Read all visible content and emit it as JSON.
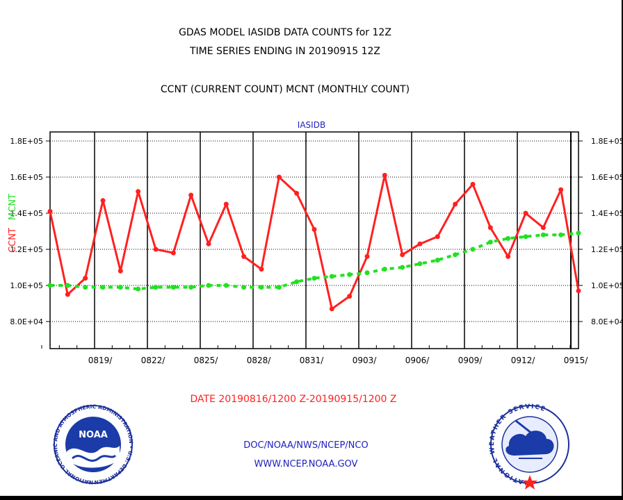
{
  "header": {
    "title_line1": "GDAS MODEL IASIDB DATA COUNTS for 12Z",
    "title_line2": "TIME SERIES ENDING IN 20190915 12Z",
    "subtitle": "CCNT (CURRENT COUNT) MCNT (MONTHLY COUNT)"
  },
  "footer": {
    "date_range": "DATE 20190816/1200 Z-20190915/1200 Z",
    "org_path": "DOC/NOAA/NWS/NCEP/NCO",
    "url": "WWW.NCEP.NOAA.GOV",
    "noaa_label": "NOAA",
    "noaa_ring_text": "NATIONAL OCEANIC AND ATMOSPHERIC ADMINISTRATION • U.S. DEPARTMENT OF COMMERCE •",
    "nws_ring_text": "NATIONAL WEATHER SERVICE"
  },
  "chart_data": {
    "type": "line",
    "title": "IASIDB",
    "ylabel_left": "CCNT",
    "ylabel_right": "MCNT",
    "left_ylim": [
      0.65,
      1.85
    ],
    "right_ylim": [
      0.65,
      1.85
    ],
    "left_ticks": [
      {
        "value": 0.8,
        "label": "8.0E+04"
      },
      {
        "value": 1.0,
        "label": "1.0E+05"
      },
      {
        "value": 1.2,
        "label": "1.2E+05"
      },
      {
        "value": 1.4,
        "label": "1.4E+05"
      },
      {
        "value": 1.6,
        "label": "1.6E+05"
      },
      {
        "value": 1.8,
        "label": "1.8E+05"
      }
    ],
    "right_ticks": [
      {
        "value": 0.8,
        "label": "8.0E+04"
      },
      {
        "value": 1.0,
        "label": "1.0E+05"
      },
      {
        "value": 1.2,
        "label": "1.2E+05"
      },
      {
        "value": 1.4,
        "label": "1.4E+05"
      },
      {
        "value": 1.6,
        "label": "1.6E+05"
      },
      {
        "value": 1.8,
        "label": "1.8E+05"
      }
    ],
    "y_multiplier_note": "values in units of 1E+05",
    "x_start": 0,
    "x_end": 30,
    "x_ticks": [
      {
        "value": 3,
        "label": "0819/"
      },
      {
        "value": 6,
        "label": "0822/"
      },
      {
        "value": 9,
        "label": "0825/"
      },
      {
        "value": 12,
        "label": "0828/"
      },
      {
        "value": 15,
        "label": "0831/"
      },
      {
        "value": 18,
        "label": "0903/"
      },
      {
        "value": 21,
        "label": "0906/"
      },
      {
        "value": 24,
        "label": "0909/"
      },
      {
        "value": 27,
        "label": "0912/"
      },
      {
        "value": 30,
        "label": "0915/"
      }
    ],
    "grid": true,
    "series": [
      {
        "name": "CCNT",
        "color": "#ff2020",
        "style": "solid-with-markers",
        "axis": "left",
        "values": [
          1.41,
          0.95,
          1.04,
          1.47,
          1.08,
          1.52,
          1.2,
          1.18,
          1.5,
          1.23,
          1.45,
          1.16,
          1.09,
          1.6,
          1.51,
          1.31,
          0.87,
          0.94,
          1.16,
          1.61,
          1.17,
          1.23,
          1.27,
          1.45,
          1.56,
          1.32,
          1.16,
          1.4,
          1.32,
          1.53,
          0.97
        ]
      },
      {
        "name": "MCNT",
        "color": "#22e022",
        "style": "dashed-with-markers",
        "axis": "right",
        "values": [
          1.0,
          1.0,
          0.99,
          0.99,
          0.99,
          0.98,
          0.99,
          0.99,
          0.99,
          1.0,
          1.0,
          0.99,
          0.99,
          0.99,
          1.02,
          1.04,
          1.05,
          1.06,
          1.07,
          1.09,
          1.1,
          1.12,
          1.14,
          1.17,
          1.2,
          1.24,
          1.26,
          1.27,
          1.28,
          1.28,
          1.29
        ]
      }
    ]
  }
}
